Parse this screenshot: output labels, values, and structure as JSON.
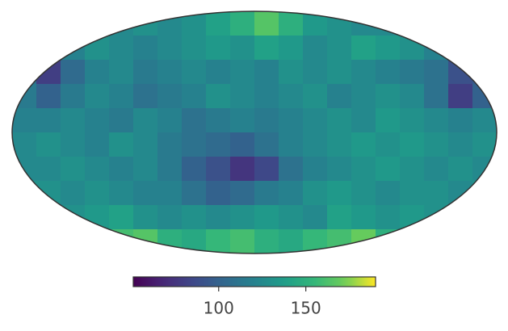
{
  "chart_data": {
    "type": "mollweide",
    "colormap": "viridis",
    "clim": [
      51,
      190
    ],
    "cticks": [
      100,
      150
    ],
    "values": [
      [
        120,
        120,
        120,
        120,
        125,
        130,
        125,
        130,
        140,
        150,
        165,
        150,
        135,
        130,
        125,
        125,
        120,
        120,
        120,
        120
      ],
      [
        115,
        115,
        120,
        130,
        125,
        120,
        125,
        130,
        135,
        130,
        140,
        135,
        125,
        130,
        140,
        135,
        130,
        120,
        115,
        115
      ],
      [
        110,
        80,
        105,
        120,
        125,
        115,
        120,
        125,
        120,
        125,
        120,
        130,
        125,
        130,
        125,
        120,
        115,
        110,
        90,
        95
      ],
      [
        115,
        100,
        115,
        125,
        120,
        110,
        115,
        120,
        130,
        125,
        120,
        125,
        130,
        120,
        125,
        130,
        125,
        110,
        80,
        100
      ],
      [
        120,
        120,
        125,
        120,
        115,
        125,
        120,
        110,
        115,
        120,
        115,
        120,
        125,
        130,
        125,
        135,
        130,
        125,
        120,
        125
      ],
      [
        125,
        130,
        125,
        120,
        130,
        125,
        115,
        110,
        105,
        100,
        110,
        120,
        125,
        130,
        135,
        130,
        135,
        130,
        125,
        130
      ],
      [
        125,
        125,
        130,
        125,
        120,
        125,
        115,
        100,
        90,
        75,
        85,
        110,
        120,
        125,
        130,
        135,
        130,
        125,
        130,
        125
      ],
      [
        130,
        130,
        125,
        130,
        125,
        120,
        120,
        110,
        100,
        105,
        115,
        120,
        130,
        135,
        130,
        125,
        130,
        130,
        125,
        130
      ],
      [
        135,
        135,
        130,
        135,
        140,
        130,
        125,
        130,
        125,
        130,
        135,
        130,
        125,
        140,
        135,
        130,
        135,
        130,
        135,
        135
      ],
      [
        140,
        140,
        145,
        150,
        160,
        165,
        150,
        145,
        155,
        160,
        150,
        145,
        155,
        160,
        170,
        150,
        145,
        140,
        140,
        140
      ]
    ]
  }
}
